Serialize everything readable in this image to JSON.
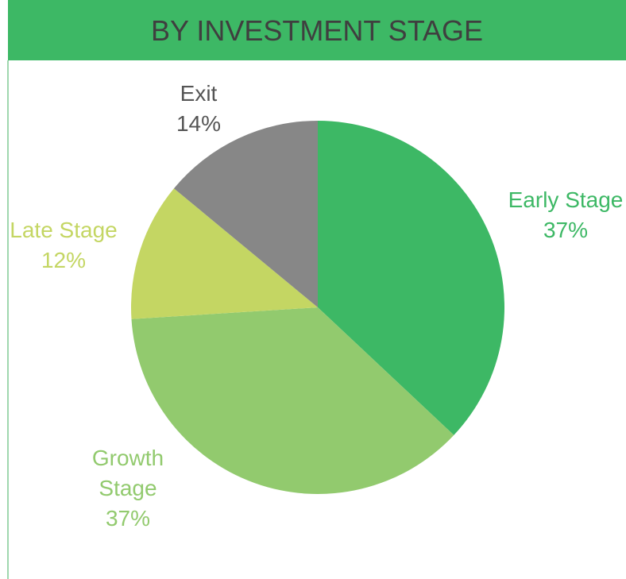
{
  "chart_data": {
    "type": "pie",
    "title": "BY INVESTMENT STAGE",
    "categories": [
      "Early Stage",
      "Growth Stage",
      "Late Stage",
      "Exit"
    ],
    "values": [
      37,
      37,
      12,
      14
    ],
    "value_labels": [
      "37%",
      "37%",
      "12%",
      "14%"
    ],
    "colors": [
      "#3db865",
      "#92ca6e",
      "#c4d663",
      "#878787"
    ],
    "label_colors": [
      "#3db865",
      "#92ca6e",
      "#c4d663",
      "#555555"
    ]
  }
}
